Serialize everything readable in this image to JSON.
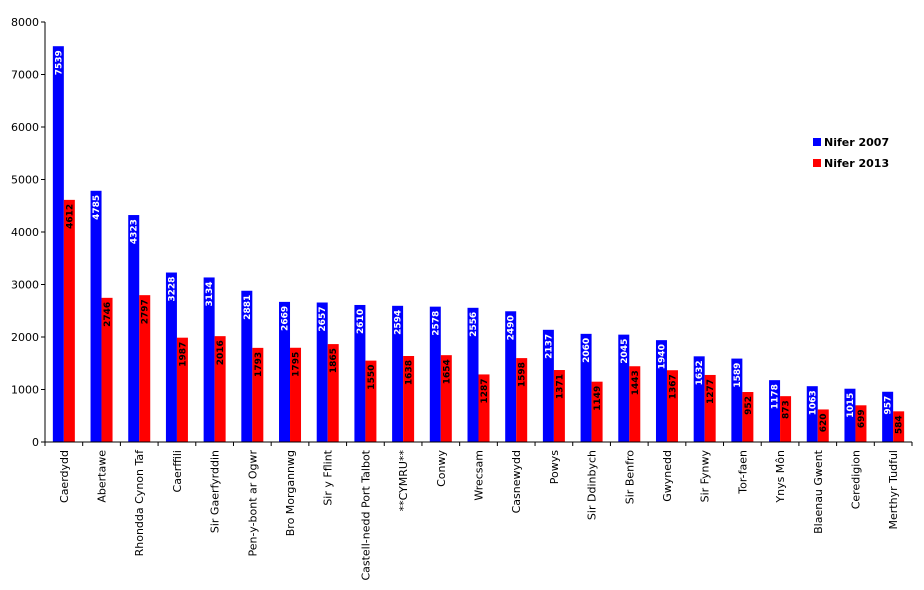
{
  "chart_data": {
    "type": "bar",
    "categories": [
      "Caerdydd",
      "Abertawe",
      "Rhondda Cynon Taf",
      "Caerffili",
      "Sir Gaerfyrddin",
      "Pen-y-bont ar Ogwr",
      "Bro Morgannwg",
      "Sir y Fflint",
      "Castell-nedd Port Talbot",
      "**CYMRU**",
      "Conwy",
      "Wrecsam",
      "Casnewydd",
      "Powys",
      "Sir Ddinbych",
      "Sir Benfro",
      "Gwynedd",
      "Sir Fynwy",
      "Tor-faen",
      "Ynys Môn",
      "Blaenau Gwent",
      "Ceredigion",
      "Merthyr Tudful"
    ],
    "series": [
      {
        "name": "Nifer 2007",
        "color": "#0000ff",
        "label_color": "#ffffff",
        "values": [
          7539,
          4785,
          4323,
          3228,
          3134,
          2881,
          2669,
          2657,
          2610,
          2594,
          2578,
          2556,
          2490,
          2137,
          2060,
          2045,
          1940,
          1632,
          1589,
          1178,
          1063,
          1015,
          957
        ]
      },
      {
        "name": "Nifer 2013",
        "color": "#ff0000",
        "label_color": "#000000",
        "values": [
          4612,
          2746,
          2797,
          1987,
          2016,
          1793,
          1795,
          1865,
          1550,
          1638,
          1654,
          1287,
          1598,
          1371,
          1149,
          1443,
          1367,
          1277,
          952,
          873,
          620,
          699,
          584
        ]
      }
    ],
    "xlabel": "",
    "ylabel": "",
    "ylim": [
      0,
      8000
    ],
    "yticks": [
      0,
      1000,
      2000,
      3000,
      4000,
      5000,
      6000,
      7000,
      8000
    ],
    "grid": false,
    "legend_position": "right"
  }
}
